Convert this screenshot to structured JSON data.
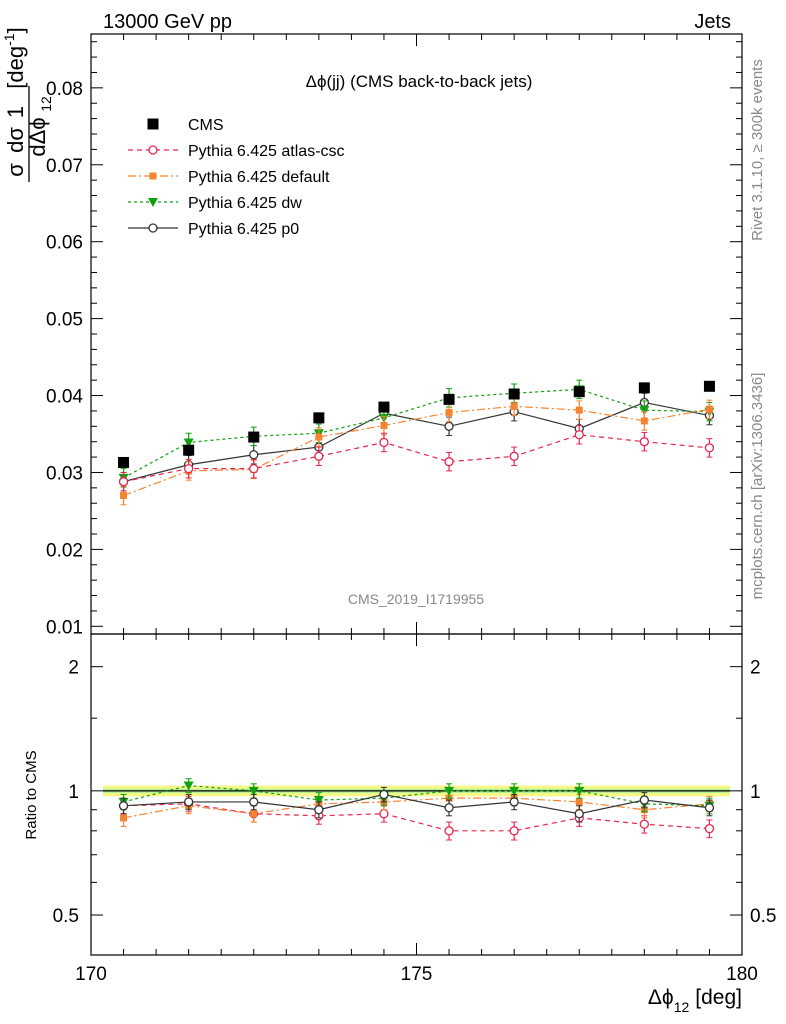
{
  "header": {
    "left": "13000 GeV pp",
    "right": "Jets"
  },
  "side_text": {
    "rivet": "Rivet 3.1.10, ≥ 300k events",
    "mcplots": "mcplots.cern.ch [arXiv:1306.3436]"
  },
  "chart_data": [
    {
      "type": "scatter",
      "title": "Δϕ(jj) (CMS back-to-back jets)",
      "watermark": "CMS_2019_I1719955",
      "ylabel": "1/σ dσ/dΔϕ₁₂ [deg⁻¹]",
      "ylabel_parts": {
        "one": "1",
        "dsigma": "dσ",
        "sigma": "σ",
        "dphi": "dΔϕ",
        "sub": "12",
        "unit": "[deg",
        "unit_exp": "-1",
        "unit_close": "]"
      },
      "xlim": [
        170,
        180
      ],
      "ylim": [
        0.009,
        0.087
      ],
      "yticks": [
        0.01,
        0.02,
        0.03,
        0.04,
        0.05,
        0.06,
        0.07,
        0.08
      ],
      "ytick_labels": [
        "0.01",
        "0.02",
        "0.03",
        "0.04",
        "0.05",
        "0.06",
        "0.07",
        "0.08"
      ],
      "legend_position": "top-left",
      "x": [
        170.5,
        171.5,
        172.5,
        173.5,
        174.5,
        175.5,
        176.5,
        177.5,
        178.5,
        179.5
      ],
      "series": [
        {
          "name": "CMS",
          "color": "#000000",
          "marker": "square",
          "line": "none",
          "values": [
            0.0313,
            0.0329,
            0.0346,
            0.0371,
            0.0385,
            0.0395,
            0.0402,
            0.0405,
            0.041,
            0.0412
          ],
          "errors": [
            0.0004,
            0.0004,
            0.0004,
            0.0004,
            0.0004,
            0.0004,
            0.0004,
            0.0004,
            0.0004,
            0.0004
          ]
        },
        {
          "name": "Pythia 6.425 atlas-csc",
          "color": "#e8264f",
          "marker": "circle-open",
          "line": "dashed",
          "values": [
            0.0288,
            0.0305,
            0.0305,
            0.0321,
            0.0339,
            0.0314,
            0.0321,
            0.0349,
            0.034,
            0.0332
          ],
          "errors": [
            0.0012,
            0.0012,
            0.0012,
            0.0012,
            0.0012,
            0.0012,
            0.0012,
            0.0012,
            0.0012,
            0.0012
          ]
        },
        {
          "name": "Pythia 6.425 default",
          "color": "#f58432",
          "marker": "square-small",
          "line": "dashdot",
          "values": [
            0.027,
            0.0302,
            0.0304,
            0.0346,
            0.0361,
            0.0378,
            0.0386,
            0.0381,
            0.0367,
            0.0382
          ],
          "errors": [
            0.0012,
            0.0012,
            0.0012,
            0.0012,
            0.0012,
            0.0012,
            0.0012,
            0.0012,
            0.0012,
            0.0012
          ]
        },
        {
          "name": "Pythia 6.425 dw",
          "color": "#10a010",
          "marker": "triangle-down",
          "line": "dotted",
          "values": [
            0.0293,
            0.0339,
            0.0347,
            0.0351,
            0.0371,
            0.0397,
            0.0403,
            0.0408,
            0.0381,
            0.0379
          ],
          "errors": [
            0.0012,
            0.0012,
            0.0012,
            0.0012,
            0.0012,
            0.0012,
            0.0012,
            0.0012,
            0.0012,
            0.0012
          ]
        },
        {
          "name": "Pythia 6.425 p0",
          "color": "#333333",
          "marker": "circle-open",
          "line": "solid",
          "values": [
            0.0288,
            0.031,
            0.0323,
            0.0333,
            0.0377,
            0.036,
            0.0379,
            0.0357,
            0.0391,
            0.0374
          ],
          "errors": [
            0.0012,
            0.0012,
            0.0012,
            0.0012,
            0.0012,
            0.0012,
            0.0012,
            0.0012,
            0.0012,
            0.0012
          ]
        }
      ]
    },
    {
      "type": "scatter",
      "title": "",
      "ylabel": "Ratio to CMS",
      "xlabel": "Δϕ₁₂ [deg]",
      "xlabel_parts": {
        "phi": "Δϕ",
        "sub": "12",
        "unit": "[deg]"
      },
      "xlim": [
        170,
        180
      ],
      "xticks": [
        170,
        175,
        180
      ],
      "xtick_labels": [
        "170",
        "175",
        "180"
      ],
      "ylim": [
        0.4,
        2.4
      ],
      "yscale": "log",
      "yticks": [
        0.5,
        1,
        2
      ],
      "ytick_labels": [
        "0.5",
        "1",
        "2"
      ],
      "reference_band": {
        "inner_color": "#b6f29a",
        "outer_color": "#f6f784",
        "inner_half_width": 0.012,
        "outer_half_width": 0.03
      },
      "x": [
        170.5,
        171.5,
        172.5,
        173.5,
        174.5,
        175.5,
        176.5,
        177.5,
        178.5,
        179.5
      ],
      "series": [
        {
          "name": "Pythia 6.425 atlas-csc",
          "values": [
            0.92,
            0.93,
            0.88,
            0.87,
            0.88,
            0.8,
            0.8,
            0.86,
            0.83,
            0.81
          ],
          "errors": [
            0.04,
            0.04,
            0.04,
            0.04,
            0.04,
            0.04,
            0.04,
            0.04,
            0.04,
            0.04
          ]
        },
        {
          "name": "Pythia 6.425 default",
          "values": [
            0.86,
            0.92,
            0.88,
            0.93,
            0.94,
            0.96,
            0.96,
            0.94,
            0.9,
            0.93
          ],
          "errors": [
            0.04,
            0.04,
            0.04,
            0.04,
            0.04,
            0.04,
            0.04,
            0.04,
            0.04,
            0.04
          ]
        },
        {
          "name": "Pythia 6.425 dw",
          "values": [
            0.94,
            1.03,
            1.0,
            0.95,
            0.96,
            1.0,
            1.0,
            1.0,
            0.93,
            0.92
          ],
          "errors": [
            0.04,
            0.04,
            0.04,
            0.04,
            0.04,
            0.04,
            0.04,
            0.04,
            0.04,
            0.04
          ]
        },
        {
          "name": "Pythia 6.425 p0",
          "values": [
            0.92,
            0.94,
            0.94,
            0.9,
            0.98,
            0.91,
            0.94,
            0.88,
            0.95,
            0.91
          ],
          "errors": [
            0.04,
            0.04,
            0.04,
            0.04,
            0.04,
            0.04,
            0.04,
            0.04,
            0.04,
            0.04
          ]
        }
      ]
    }
  ]
}
